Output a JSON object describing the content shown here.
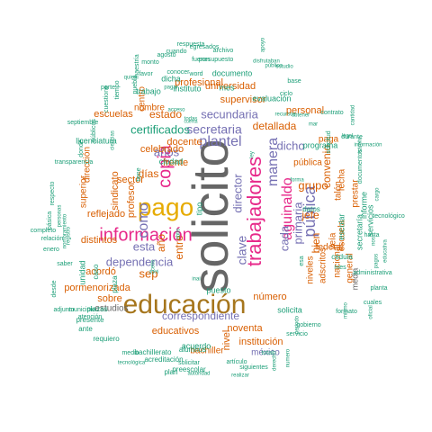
{
  "colors": {
    "gray": "#666666",
    "teal": "#1b9e77",
    "orange": "#d95f02",
    "purple": "#7570b3",
    "magenta": "#e7298a",
    "gold": "#e6ab02",
    "brown": "#a6761d"
  },
  "words": [
    {
      "text": "solicito",
      "color": "gray"
    },
    {
      "text": "educación",
      "color": "brown"
    },
    {
      "text": "pago",
      "color": "gold"
    },
    {
      "text": "trabajadores",
      "color": "magenta"
    },
    {
      "text": "información",
      "color": "magenta"
    },
    {
      "text": "copia",
      "color": "magenta"
    },
    {
      "text": "aguinaldo",
      "color": "magenta"
    },
    {
      "text": "plantel",
      "color": "purple"
    },
    {
      "text": "manera",
      "color": "purple"
    },
    {
      "text": "pública",
      "color": "purple"
    },
    {
      "text": "como",
      "color": "purple"
    },
    {
      "text": "secretaria",
      "color": "purple"
    },
    {
      "text": "secundaria",
      "color": "purple"
    },
    {
      "text": "dependencia",
      "color": "purple"
    },
    {
      "text": "años",
      "color": "purple"
    },
    {
      "text": "clave",
      "color": "purple"
    },
    {
      "text": "director",
      "color": "purple"
    },
    {
      "text": "correspondiente",
      "color": "purple"
    },
    {
      "text": "primaria",
      "color": "purple"
    },
    {
      "text": "cada",
      "color": "purple"
    },
    {
      "text": "dicho",
      "color": "purple"
    },
    {
      "text": "esta",
      "color": "purple"
    },
    {
      "text": "grupo",
      "color": "orange"
    },
    {
      "text": "sep",
      "color": "orange"
    },
    {
      "text": "certificados",
      "color": "teal"
    },
    {
      "text": "estado",
      "color": "orange"
    },
    {
      "text": "detallada",
      "color": "orange"
    },
    {
      "text": "jefe",
      "color": "orange"
    },
    {
      "text": "bien",
      "color": "orange"
    },
    {
      "text": "días",
      "color": "orange"
    },
    {
      "text": "convenio",
      "color": "orange"
    },
    {
      "text": "sector",
      "color": "orange"
    },
    {
      "text": "sindicato",
      "color": "orange"
    },
    {
      "text": "profesor",
      "color": "orange"
    },
    {
      "text": "entre",
      "color": "orange"
    },
    {
      "text": "año",
      "color": "orange"
    },
    {
      "text": "frente",
      "color": "orange"
    },
    {
      "text": "reflejado",
      "color": "orange"
    },
    {
      "text": "distintos",
      "color": "orange"
    },
    {
      "text": "acordó",
      "color": "orange"
    },
    {
      "text": "pormenorizada",
      "color": "orange"
    },
    {
      "text": "educativos",
      "color": "orange"
    },
    {
      "text": "noventa",
      "color": "orange"
    },
    {
      "text": "número",
      "color": "orange"
    },
    {
      "text": "institución",
      "color": "orange"
    },
    {
      "text": "nivel",
      "color": "orange"
    },
    {
      "text": "bachiller",
      "color": "orange"
    },
    {
      "text": "méxico",
      "color": "purple"
    },
    {
      "text": "celebrado",
      "color": "orange"
    },
    {
      "text": "supervisor",
      "color": "orange"
    },
    {
      "text": "universidad",
      "color": "orange"
    },
    {
      "text": "profesional",
      "color": "orange"
    },
    {
      "text": "personal",
      "color": "orange"
    },
    {
      "text": "docente",
      "color": "orange"
    },
    {
      "text": "escuelas",
      "color": "orange"
    },
    {
      "text": "nombre",
      "color": "orange"
    },
    {
      "text": "centro",
      "color": "orange"
    },
    {
      "text": "sobre",
      "color": "orange"
    },
    {
      "text": "estudios",
      "color": "gray"
    },
    {
      "text": "adscritos",
      "color": "orange"
    },
    {
      "text": "niveles",
      "color": "orange"
    },
    {
      "text": "nacional",
      "color": "orange"
    },
    {
      "text": "general",
      "color": "orange"
    },
    {
      "text": "veía",
      "color": "orange"
    },
    {
      "text": "escuela",
      "color": "orange"
    },
    {
      "text": "federal",
      "color": "orange"
    },
    {
      "text": "talón",
      "color": "orange"
    },
    {
      "text": "fecha",
      "color": "orange"
    },
    {
      "text": "paga",
      "color": "orange"
    },
    {
      "text": "prestar",
      "color": "orange"
    },
    {
      "text": "superior",
      "color": "orange"
    },
    {
      "text": "dirección",
      "color": "orange"
    },
    {
      "text": "pública",
      "color": "orange"
    },
    {
      "text": "media",
      "color": "gray"
    },
    {
      "text": "informe",
      "color": "teal"
    },
    {
      "text": "servicios",
      "color": "teal"
    },
    {
      "text": "secretaría",
      "color": "teal"
    },
    {
      "text": "programa",
      "color": "teal"
    },
    {
      "text": "escolar",
      "color": "teal"
    },
    {
      "text": "solicita",
      "color": "teal"
    },
    {
      "text": "ciudad",
      "color": "teal"
    },
    {
      "text": "licenciatura",
      "color": "teal"
    },
    {
      "text": "documento",
      "color": "teal"
    },
    {
      "text": "evaluación",
      "color": "teal"
    },
    {
      "text": "trabajo",
      "color": "teal"
    },
    {
      "text": "instituto",
      "color": "teal"
    },
    {
      "text": "dicha",
      "color": "teal"
    },
    {
      "text": "mes",
      "color": "teal"
    },
    {
      "text": "tipo",
      "color": "teal"
    },
    {
      "text": "plazas",
      "color": "teal"
    },
    {
      "text": "plaza",
      "color": "teal"
    },
    {
      "text": "caso",
      "color": "teal"
    },
    {
      "text": "unidad",
      "color": "teal"
    },
    {
      "text": "puesto",
      "color": "teal"
    },
    {
      "text": "acuerdo",
      "color": "teal"
    },
    {
      "text": "alumnos",
      "color": "teal"
    },
    {
      "text": "preescolar",
      "color": "teal"
    },
    {
      "text": "plan",
      "color": "teal"
    },
    {
      "text": "acreditación",
      "color": "teal"
    },
    {
      "text": "bachillerato",
      "color": "teal"
    },
    {
      "text": "medio",
      "color": "teal"
    },
    {
      "text": "presente",
      "color": "teal"
    },
    {
      "text": "requiero",
      "color": "teal"
    },
    {
      "text": "ante",
      "color": "teal"
    },
    {
      "text": "atención",
      "color": "teal"
    },
    {
      "text": "municipio",
      "color": "teal"
    },
    {
      "text": "adjunto",
      "color": "teal"
    },
    {
      "text": "desde",
      "color": "teal"
    },
    {
      "text": "saber",
      "color": "teal"
    },
    {
      "text": "enero",
      "color": "teal"
    },
    {
      "text": "completo",
      "color": "teal"
    },
    {
      "text": "relación",
      "color": "teal"
    },
    {
      "text": "básica",
      "color": "teal"
    },
    {
      "text": "respecto",
      "color": "teal"
    },
    {
      "text": "personas",
      "color": "teal"
    },
    {
      "text": "nombramiento",
      "color": "teal"
    },
    {
      "text": "registro",
      "color": "teal"
    },
    {
      "text": "transparencia",
      "color": "teal"
    },
    {
      "text": "donde",
      "color": "teal"
    },
    {
      "text": "públicos",
      "color": "teal"
    },
    {
      "text": "septiembre",
      "color": "teal"
    },
    {
      "text": "cuestione",
      "color": "teal"
    },
    {
      "text": "parte",
      "color": "teal"
    },
    {
      "text": "favor",
      "color": "teal"
    },
    {
      "text": "monto",
      "color": "teal"
    },
    {
      "text": "maestría",
      "color": "teal"
    },
    {
      "text": "agosto",
      "color": "teal"
    },
    {
      "text": "fueron",
      "color": "teal"
    },
    {
      "text": "conocer",
      "color": "teal"
    },
    {
      "text": "word",
      "color": "teal"
    },
    {
      "text": "presupuesto",
      "color": "teal"
    },
    {
      "text": "cuando",
      "color": "teal"
    },
    {
      "text": "respuesta",
      "color": "teal"
    },
    {
      "text": "egresados",
      "color": "teal"
    },
    {
      "text": "archivo",
      "color": "teal"
    },
    {
      "text": "disfrutaban",
      "color": "teal"
    },
    {
      "text": "público",
      "color": "teal"
    },
    {
      "text": "apoyo",
      "color": "teal"
    },
    {
      "text": "estudio",
      "color": "teal"
    },
    {
      "text": "ciclo",
      "color": "teal"
    },
    {
      "text": "base",
      "color": "teal"
    },
    {
      "text": "recursos",
      "color": "teal"
    },
    {
      "text": "obtener",
      "color": "teal"
    },
    {
      "text": "contrato",
      "color": "teal"
    },
    {
      "text": "cantidad",
      "color": "teal"
    },
    {
      "text": "legal",
      "color": "teal"
    },
    {
      "text": "durante",
      "color": "teal"
    },
    {
      "text": "información",
      "color": "teal"
    },
    {
      "text": "trámite",
      "color": "teal"
    },
    {
      "text": "cargo",
      "color": "teal"
    },
    {
      "text": "tecnológico",
      "color": "teal"
    },
    {
      "text": "hasta",
      "color": "teal"
    },
    {
      "text": "nos",
      "color": "teal"
    },
    {
      "text": "educativa",
      "color": "teal"
    },
    {
      "text": "administrativa",
      "color": "teal"
    },
    {
      "text": "planta",
      "color": "teal"
    },
    {
      "text": "cuales",
      "color": "teal"
    },
    {
      "text": "oficial",
      "color": "teal"
    },
    {
      "text": "formato",
      "color": "teal"
    },
    {
      "text": "gobierno",
      "color": "teal"
    },
    {
      "text": "periodo",
      "color": "teal"
    },
    {
      "text": "servicio",
      "color": "teal"
    },
    {
      "text": "total",
      "color": "teal"
    },
    {
      "text": "artículo",
      "color": "teal"
    },
    {
      "text": "siguientes",
      "color": "teal"
    },
    {
      "text": "realizar",
      "color": "teal"
    },
    {
      "text": "autoridad",
      "color": "teal"
    },
    {
      "text": "solicitar",
      "color": "teal"
    },
    {
      "text": "tecnológica",
      "color": "teal"
    },
    {
      "text": "numero",
      "color": "teal"
    },
    {
      "text": "derecho",
      "color": "teal"
    },
    {
      "text": "forma",
      "color": "teal"
    },
    {
      "text": "mismo",
      "color": "teal"
    },
    {
      "text": "cédula",
      "color": "teal"
    },
    {
      "text": "datos",
      "color": "teal"
    },
    {
      "text": "mar",
      "color": "teal"
    },
    {
      "text": "solicitud",
      "color": "teal"
    },
    {
      "text": "acceso",
      "color": "teal"
    },
    {
      "text": "todas",
      "color": "teal"
    },
    {
      "text": "cuenta",
      "color": "teal"
    },
    {
      "text": "ciencias",
      "color": "teal"
    },
    {
      "text": "tiene",
      "color": "teal"
    },
    {
      "text": "ley",
      "color": "teal"
    },
    {
      "text": "inai",
      "color": "teal"
    },
    {
      "text": "cbtis",
      "color": "teal"
    },
    {
      "text": "cetis",
      "color": "teal"
    },
    {
      "text": "dgeti",
      "color": "teal"
    },
    {
      "text": "quien",
      "color": "teal"
    },
    {
      "text": "pagar",
      "color": "teal"
    },
    {
      "text": "tiempo",
      "color": "teal"
    },
    {
      "text": "puebla",
      "color": "teal"
    },
    {
      "text": "documentos",
      "color": "teal"
    },
    {
      "text": "pagos",
      "color": "teal"
    },
    {
      "text": "mes",
      "color": "teal"
    },
    {
      "text": "esa",
      "color": "teal"
    },
    {
      "text": "dos",
      "color": "teal"
    }
  ]
}
